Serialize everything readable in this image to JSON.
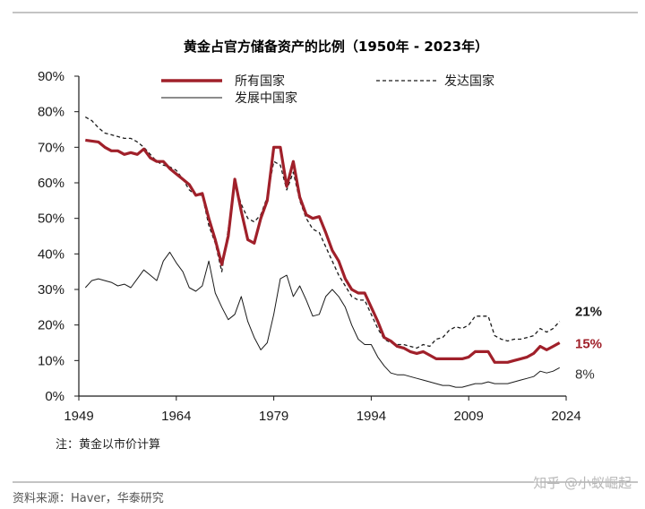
{
  "chart_data": {
    "type": "line",
    "title": "黄金占官方储备资产的比例（1950年 - 2023年）",
    "xlabel": "",
    "ylabel": "",
    "xlim": [
      1949,
      2024
    ],
    "ylim": [
      0,
      90
    ],
    "x_ticks": [
      "1949",
      "1964",
      "1979",
      "1994",
      "2009",
      "2024"
    ],
    "y_ticks": [
      "0%",
      "10%",
      "20%",
      "30%",
      "40%",
      "50%",
      "60%",
      "70%",
      "80%",
      "90%"
    ],
    "grid": false,
    "legend_position": "top",
    "series": [
      {
        "name": "所有国家",
        "color": "#a0202a",
        "style": "solid-thick",
        "end_label": "15%",
        "points": [
          [
            1950,
            72
          ],
          [
            1952,
            71.5
          ],
          [
            1953,
            70
          ],
          [
            1954,
            69
          ],
          [
            1955,
            69
          ],
          [
            1956,
            68
          ],
          [
            1957,
            68.5
          ],
          [
            1958,
            68
          ],
          [
            1959,
            69.5
          ],
          [
            1960,
            67
          ],
          [
            1961,
            66
          ],
          [
            1962,
            66
          ],
          [
            1963,
            64
          ],
          [
            1964,
            62.5
          ],
          [
            1965,
            61
          ],
          [
            1966,
            59.5
          ],
          [
            1967,
            56.5
          ],
          [
            1968,
            57
          ],
          [
            1969,
            50
          ],
          [
            1970,
            44
          ],
          [
            1971,
            37
          ],
          [
            1972,
            45
          ],
          [
            1973,
            61
          ],
          [
            1974,
            52
          ],
          [
            1975,
            44
          ],
          [
            1976,
            43
          ],
          [
            1977,
            50
          ],
          [
            1978,
            55
          ],
          [
            1979,
            70
          ],
          [
            1980,
            70
          ],
          [
            1981,
            59
          ],
          [
            1982,
            66
          ],
          [
            1983,
            56
          ],
          [
            1984,
            51
          ],
          [
            1985,
            50
          ],
          [
            1986,
            50.5
          ],
          [
            1987,
            46
          ],
          [
            1988,
            41
          ],
          [
            1989,
            38
          ],
          [
            1990,
            33
          ],
          [
            1991,
            30
          ],
          [
            1992,
            29
          ],
          [
            1993,
            29
          ],
          [
            1994,
            25
          ],
          [
            1995,
            21
          ],
          [
            1996,
            16.5
          ],
          [
            1997,
            15.5
          ],
          [
            1998,
            14
          ],
          [
            1999,
            13.5
          ],
          [
            2000,
            12.5
          ],
          [
            2001,
            12
          ],
          [
            2002,
            12.5
          ],
          [
            2003,
            11.5
          ],
          [
            2004,
            10.5
          ],
          [
            2005,
            10.5
          ],
          [
            2006,
            10.5
          ],
          [
            2007,
            10.5
          ],
          [
            2008,
            10.5
          ],
          [
            2009,
            11
          ],
          [
            2010,
            12.5
          ],
          [
            2011,
            12.5
          ],
          [
            2012,
            12.5
          ],
          [
            2013,
            9.5
          ],
          [
            2014,
            9.5
          ],
          [
            2015,
            9.5
          ],
          [
            2016,
            10
          ],
          [
            2017,
            10.5
          ],
          [
            2018,
            11
          ],
          [
            2019,
            12
          ],
          [
            2020,
            14
          ],
          [
            2021,
            13
          ],
          [
            2022,
            14
          ],
          [
            2023,
            15
          ]
        ]
      },
      {
        "name": "发达国家",
        "color": "#1a1a1a",
        "style": "dashed",
        "end_label": "21%",
        "points": [
          [
            1950,
            78.5
          ],
          [
            1951,
            77.5
          ],
          [
            1952,
            75.5
          ],
          [
            1953,
            74
          ],
          [
            1954,
            73.5
          ],
          [
            1955,
            73
          ],
          [
            1956,
            72.5
          ],
          [
            1957,
            72.5
          ],
          [
            1958,
            71.5
          ],
          [
            1959,
            70
          ],
          [
            1960,
            68
          ],
          [
            1961,
            66
          ],
          [
            1962,
            65
          ],
          [
            1963,
            64.5
          ],
          [
            1964,
            63.5
          ],
          [
            1965,
            61
          ],
          [
            1966,
            58
          ],
          [
            1967,
            56.5
          ],
          [
            1968,
            56.5
          ],
          [
            1969,
            48
          ],
          [
            1970,
            43
          ],
          [
            1971,
            35
          ],
          [
            1972,
            47
          ],
          [
            1973,
            60
          ],
          [
            1974,
            54
          ],
          [
            1975,
            50
          ],
          [
            1976,
            49
          ],
          [
            1977,
            51
          ],
          [
            1978,
            56
          ],
          [
            1979,
            66
          ],
          [
            1980,
            65
          ],
          [
            1981,
            58
          ],
          [
            1982,
            63
          ],
          [
            1983,
            55
          ],
          [
            1984,
            50
          ],
          [
            1985,
            47
          ],
          [
            1986,
            46
          ],
          [
            1987,
            42
          ],
          [
            1988,
            38
          ],
          [
            1989,
            34
          ],
          [
            1990,
            31
          ],
          [
            1991,
            28
          ],
          [
            1992,
            27
          ],
          [
            1993,
            27
          ],
          [
            1994,
            23
          ],
          [
            1995,
            19
          ],
          [
            1996,
            16
          ],
          [
            1997,
            15
          ],
          [
            1998,
            14.5
          ],
          [
            1999,
            14.5
          ],
          [
            2000,
            14
          ],
          [
            2001,
            13.5
          ],
          [
            2002,
            14.5
          ],
          [
            2003,
            14
          ],
          [
            2004,
            16
          ],
          [
            2005,
            16.5
          ],
          [
            2006,
            18.5
          ],
          [
            2007,
            19.5
          ],
          [
            2008,
            19
          ],
          [
            2009,
            20
          ],
          [
            2010,
            22.5
          ],
          [
            2011,
            22.5
          ],
          [
            2012,
            22.5
          ],
          [
            2013,
            17
          ],
          [
            2014,
            16
          ],
          [
            2015,
            15.5
          ],
          [
            2016,
            16
          ],
          [
            2017,
            16
          ],
          [
            2018,
            16.5
          ],
          [
            2019,
            17
          ],
          [
            2020,
            19
          ],
          [
            2021,
            18
          ],
          [
            2022,
            19
          ],
          [
            2023,
            21
          ]
        ]
      },
      {
        "name": "发展中国家",
        "color": "#1a1a1a",
        "style": "solid-thin",
        "end_label": "8%",
        "points": [
          [
            1950,
            30.5
          ],
          [
            1951,
            32.5
          ],
          [
            1952,
            33
          ],
          [
            1953,
            32.5
          ],
          [
            1954,
            32
          ],
          [
            1955,
            31
          ],
          [
            1956,
            31.5
          ],
          [
            1957,
            30.5
          ],
          [
            1958,
            33
          ],
          [
            1959,
            35.5
          ],
          [
            1960,
            34
          ],
          [
            1961,
            32.5
          ],
          [
            1962,
            38
          ],
          [
            1963,
            40.5
          ],
          [
            1964,
            37.5
          ],
          [
            1965,
            35
          ],
          [
            1966,
            30.5
          ],
          [
            1967,
            29.5
          ],
          [
            1968,
            31
          ],
          [
            1969,
            38
          ],
          [
            1970,
            29
          ],
          [
            1971,
            25
          ],
          [
            1972,
            21.5
          ],
          [
            1973,
            23
          ],
          [
            1974,
            28
          ],
          [
            1975,
            21
          ],
          [
            1976,
            16.5
          ],
          [
            1977,
            13
          ],
          [
            1978,
            15
          ],
          [
            1979,
            23
          ],
          [
            1980,
            33
          ],
          [
            1981,
            34
          ],
          [
            1982,
            28
          ],
          [
            1983,
            31
          ],
          [
            1984,
            27
          ],
          [
            1985,
            22.5
          ],
          [
            1986,
            23
          ],
          [
            1987,
            28
          ],
          [
            1988,
            30
          ],
          [
            1989,
            28
          ],
          [
            1990,
            25
          ],
          [
            1991,
            20
          ],
          [
            1992,
            16
          ],
          [
            1993,
            14.5
          ],
          [
            1994,
            14.5
          ],
          [
            1995,
            11
          ],
          [
            1996,
            8.5
          ],
          [
            1997,
            6.5
          ],
          [
            1998,
            6
          ],
          [
            1999,
            6
          ],
          [
            2000,
            5.5
          ],
          [
            2001,
            5
          ],
          [
            2002,
            4.5
          ],
          [
            2003,
            4
          ],
          [
            2004,
            3.5
          ],
          [
            2005,
            3
          ],
          [
            2006,
            3
          ],
          [
            2007,
            2.5
          ],
          [
            2008,
            2.5
          ],
          [
            2009,
            3
          ],
          [
            2010,
            3.5
          ],
          [
            2011,
            3.5
          ],
          [
            2012,
            4
          ],
          [
            2013,
            3.5
          ],
          [
            2014,
            3.5
          ],
          [
            2015,
            3.5
          ],
          [
            2016,
            4
          ],
          [
            2017,
            4.5
          ],
          [
            2018,
            5
          ],
          [
            2019,
            5.5
          ],
          [
            2020,
            7
          ],
          [
            2021,
            6.5
          ],
          [
            2022,
            7
          ],
          [
            2023,
            8
          ]
        ]
      }
    ],
    "note": "注：黄金以市价计算",
    "source": "资料来源：Haver，华泰研究"
  },
  "watermark": "知乎 @小蚁崛起"
}
